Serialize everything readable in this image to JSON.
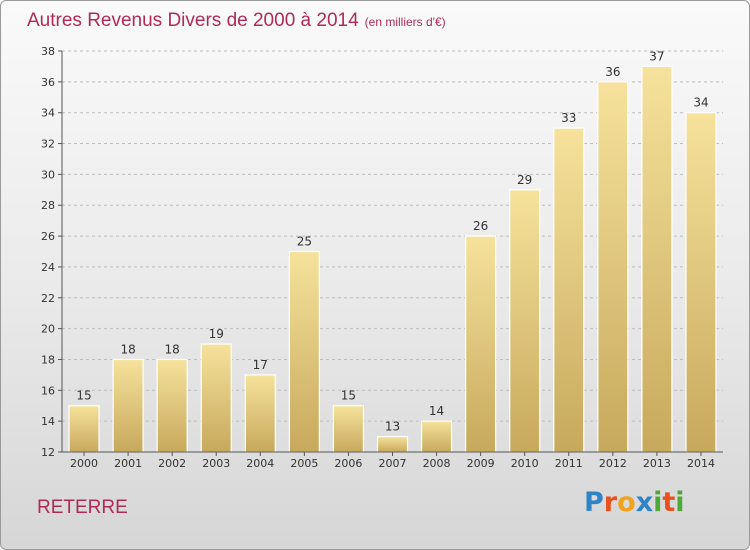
{
  "page": {
    "title": "Autres Revenus Divers de 2000 à 2014",
    "unit": "(en milliers d'€)",
    "commune": "RETERRE",
    "logo": {
      "text": "Proxiti",
      "letters": [
        {
          "ch": "P",
          "color": "#2f83c7"
        },
        {
          "ch": "r",
          "color": "#e8501e"
        },
        {
          "ch": "o",
          "color": "#f3a21c"
        },
        {
          "ch": "x",
          "color": "#2f83c7"
        },
        {
          "ch": "i",
          "color": "#4fa83a"
        },
        {
          "ch": "t",
          "color": "#e8501e"
        },
        {
          "ch": "i",
          "color": "#4fa83a"
        }
      ]
    }
  },
  "colors": {
    "title": "#b02a58",
    "bar_light": "#f6e29c",
    "bar_dark": "#c7a95c",
    "axis": "#555555",
    "grid": "#bdbdbd"
  },
  "chart_data": {
    "type": "bar",
    "title": "Autres Revenus Divers de 2000 à 2014",
    "subtitle": "(en milliers d'€)",
    "xlabel": "",
    "ylabel": "",
    "categories": [
      "2000",
      "2001",
      "2002",
      "2003",
      "2004",
      "2005",
      "2006",
      "2007",
      "2008",
      "2009",
      "2010",
      "2011",
      "2012",
      "2013",
      "2014"
    ],
    "values": [
      15,
      18,
      18,
      19,
      17,
      25,
      15,
      13,
      14,
      26,
      29,
      33,
      36,
      37,
      34
    ],
    "ylim": [
      12,
      38
    ],
    "yticks": [
      12,
      14,
      16,
      18,
      20,
      22,
      24,
      26,
      28,
      30,
      32,
      34,
      36,
      38
    ],
    "grid": true,
    "legend": "none"
  }
}
